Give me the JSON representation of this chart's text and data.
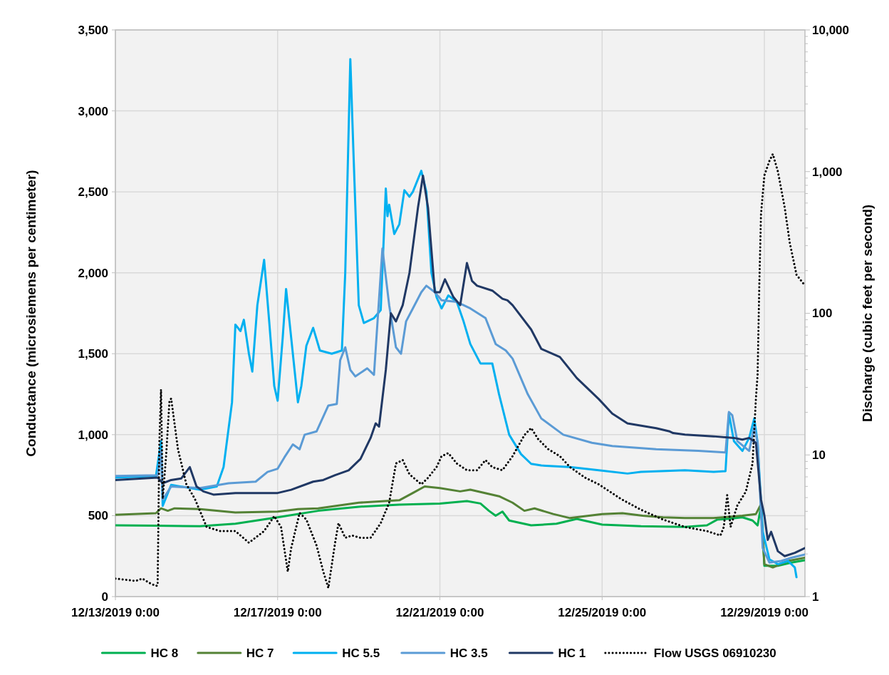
{
  "chart_data": {
    "type": "line",
    "ylabel": "Conductance (microsiemens per centimeter)",
    "y2label": "Discharge (cubic feet per second)",
    "xlim": [
      "2019-12-13T00:00",
      "2019-12-30T00:00"
    ],
    "xticks": [
      {
        "value": "2019-12-13T00:00",
        "label": "12/13/2019 0:00"
      },
      {
        "value": "2019-12-17T00:00",
        "label": "12/17/2019 0:00"
      },
      {
        "value": "2019-12-21T00:00",
        "label": "12/21/2019 0:00"
      },
      {
        "value": "2019-12-25T00:00",
        "label": "12/25/2019 0:00"
      },
      {
        "value": "2019-12-29T00:00",
        "label": "12/29/2019 0:00"
      }
    ],
    "ylim": [
      0,
      3500
    ],
    "yticks": [
      0,
      {
        "value": 500,
        "label": "500"
      },
      {
        "value": 1000,
        "label": "1,000"
      },
      {
        "value": 1500,
        "label": "1,500"
      },
      {
        "value": 2000,
        "label": "2,000"
      },
      {
        "value": 2500,
        "label": "2,500"
      },
      {
        "value": 3000,
        "label": "3,000"
      },
      {
        "value": 3500,
        "label": "3,500"
      }
    ],
    "y2lim": [
      1,
      10000
    ],
    "log": "y2",
    "y2ticks": [
      1,
      {
        "value": 2,
        "label": null
      },
      {
        "value": 3,
        "label": null
      },
      {
        "value": 4,
        "label": null
      },
      {
        "value": 5,
        "label": null
      },
      {
        "value": 6,
        "label": null
      },
      {
        "value": 7,
        "label": null
      },
      {
        "value": 8,
        "label": null
      },
      {
        "value": 9,
        "label": null
      },
      10,
      {
        "value": 20,
        "label": null
      },
      {
        "value": 30,
        "label": null
      },
      {
        "value": 40,
        "label": null
      },
      {
        "value": 50,
        "label": null
      },
      {
        "value": 60,
        "label": null
      },
      {
        "value": 70,
        "label": null
      },
      {
        "value": 80,
        "label": null
      },
      {
        "value": 90,
        "label": null
      },
      100,
      {
        "value": 200,
        "label": null
      },
      {
        "value": 300,
        "label": null
      },
      {
        "value": 400,
        "label": null
      },
      {
        "value": 500,
        "label": null
      },
      {
        "value": 600,
        "label": null
      },
      {
        "value": 700,
        "label": null
      },
      {
        "value": 800,
        "label": null
      },
      {
        "value": 900,
        "label": null
      },
      {
        "value": 1000,
        "label": "1,000"
      },
      {
        "value": 2000,
        "label": null
      },
      {
        "value": 3000,
        "label": null
      },
      {
        "value": 4000,
        "label": null
      },
      {
        "value": 5000,
        "label": null
      },
      {
        "value": 6000,
        "label": null
      },
      {
        "value": 7000,
        "label": null
      },
      {
        "value": 8000,
        "label": null
      },
      {
        "value": 9000,
        "label": null
      },
      {
        "value": 10000,
        "label": "10,000"
      }
    ],
    "grid": true,
    "legend": "bottom",
    "marker": "none",
    "line_style": "solid",
    "series": [
      {
        "name": "HC 8",
        "color": "#00b050",
        "x": [
          "2019-12-13T00:00",
          "2019-12-14T00:00",
          "2019-12-15T02:00",
          "2019-12-15T23:00",
          "2019-12-17T00:00",
          "2019-12-18T00:00",
          "2019-12-19T00:00",
          "2019-12-20T00:00",
          "2019-12-21T00:00",
          "2019-12-21T16:00",
          "2019-12-22T00:00",
          "2019-12-22T05:00",
          "2019-12-22T09:00",
          "2019-12-22T13:00",
          "2019-12-22T17:00",
          "2019-12-23T06:00",
          "2019-12-23T21:00",
          "2019-12-24T09:00",
          "2019-12-25T00:00",
          "2019-12-25T23:00",
          "2019-12-27T01:00",
          "2019-12-27T14:00",
          "2019-12-27T20:00",
          "2019-12-28T02:00",
          "2019-12-28T11:00",
          "2019-12-28T17:00",
          "2019-12-28T20:00",
          "2019-12-28T22:00",
          "2019-12-29T00:00",
          "2019-12-29T08:00",
          "2019-12-29T16:00",
          "2019-12-30T00:00"
        ],
        "values": [
          440,
          438,
          435,
          450,
          490,
          530,
          555,
          568,
          575,
          590,
          575,
          530,
          500,
          525,
          470,
          440,
          450,
          480,
          445,
          435,
          430,
          440,
          475,
          480,
          490,
          470,
          440,
          560,
          190,
          190,
          210,
          225
        ]
      },
      {
        "name": "HC 7",
        "color": "#548235",
        "x": [
          "2019-12-13T00:00",
          "2019-12-14T00:00",
          "2019-12-14T03:00",
          "2019-12-14T07:00",
          "2019-12-14T11:00",
          "2019-12-15T02:00",
          "2019-12-15T23:00",
          "2019-12-17T00:00",
          "2019-12-17T12:00",
          "2019-12-18T00:00",
          "2019-12-19T00:00",
          "2019-12-20T00:00",
          "2019-12-20T08:00",
          "2019-12-20T15:00",
          "2019-12-21T00:00",
          "2019-12-21T12:00",
          "2019-12-21T18:00",
          "2019-12-22T11:00",
          "2019-12-22T19:00",
          "2019-12-23T02:00",
          "2019-12-23T08:00",
          "2019-12-23T19:00",
          "2019-12-24T05:00",
          "2019-12-25T00:00",
          "2019-12-25T12:00",
          "2019-12-26T00:00",
          "2019-12-26T12:00",
          "2019-12-27T01:00",
          "2019-12-27T18:00",
          "2019-12-28T11:00",
          "2019-12-28T19:00",
          "2019-12-28T22:00",
          "2019-12-29T00:00",
          "2019-12-29T05:00",
          "2019-12-29T14:00",
          "2019-12-30T00:00"
        ],
        "values": [
          505,
          515,
          545,
          530,
          545,
          540,
          520,
          525,
          540,
          545,
          580,
          595,
          640,
          680,
          670,
          650,
          660,
          620,
          580,
          530,
          545,
          510,
          485,
          510,
          515,
          500,
          490,
          485,
          485,
          500,
          510,
          570,
          200,
          180,
          220,
          240
        ]
      },
      {
        "name": "HC 5.5",
        "color": "#00b0f0",
        "x": [
          "2019-12-13T00:00",
          "2019-12-14T00:00",
          "2019-12-14T03:00",
          "2019-12-14T04:00",
          "2019-12-14T09:00",
          "2019-12-15T02:00",
          "2019-12-15T12:00",
          "2019-12-15T16:00",
          "2019-12-15T21:00",
          "2019-12-15T23:00",
          "2019-12-16T02:00",
          "2019-12-16T04:00",
          "2019-12-16T07:00",
          "2019-12-16T09:00",
          "2019-12-16T12:00",
          "2019-12-16T16:00",
          "2019-12-16T19:00",
          "2019-12-16T22:00",
          "2019-12-17T00:00",
          "2019-12-17T03:00",
          "2019-12-17T05:00",
          "2019-12-17T08:00",
          "2019-12-17T12:00",
          "2019-12-17T14:00",
          "2019-12-17T17:00",
          "2019-12-17T21:00",
          "2019-12-18T01:00",
          "2019-12-18T08:00",
          "2019-12-18T14:00",
          "2019-12-18T16:00",
          "2019-12-18T19:00",
          "2019-12-18T21:00",
          "2019-12-19T00:00",
          "2019-12-19T03:00",
          "2019-12-19T09:00",
          "2019-12-19T13:00",
          "2019-12-19T16:00",
          "2019-12-19T17:00",
          "2019-12-19T18:00",
          "2019-12-19T21:00",
          "2019-12-20T00:00",
          "2019-12-20T03:00",
          "2019-12-20T06:00",
          "2019-12-20T08:00",
          "2019-12-20T13:00",
          "2019-12-20T16:00",
          "2019-12-20T19:00",
          "2019-12-20T22:00",
          "2019-12-21T01:00",
          "2019-12-21T05:00",
          "2019-12-21T10:00",
          "2019-12-21T14:00",
          "2019-12-21T18:00",
          "2019-12-22T00:00",
          "2019-12-22T07:00",
          "2019-12-22T11:00",
          "2019-12-22T17:00",
          "2019-12-23T00:00",
          "2019-12-23T06:00",
          "2019-12-23T12:00",
          "2019-12-24T05:00",
          "2019-12-24T22:00",
          "2019-12-25T15:00",
          "2019-12-25T23:00",
          "2019-12-27T01:00",
          "2019-12-27T18:00",
          "2019-12-28T01:00",
          "2019-12-28T03:00",
          "2019-12-28T06:00",
          "2019-12-28T11:00",
          "2019-12-28T15:00",
          "2019-12-28T18:00",
          "2019-12-28T20:00",
          "2019-12-28T23:00",
          "2019-12-29T03:00",
          "2019-12-29T08:00",
          "2019-12-29T14:00",
          "2019-12-29T18:00",
          "2019-12-29T19:00"
        ],
        "values": [
          735,
          745,
          960,
          560,
          690,
          660,
          680,
          800,
          1200,
          1680,
          1640,
          1710,
          1500,
          1390,
          1800,
          2080,
          1700,
          1300,
          1210,
          1600,
          1900,
          1600,
          1200,
          1300,
          1550,
          1660,
          1520,
          1500,
          1520,
          2000,
          3320,
          2700,
          1800,
          1690,
          1720,
          1770,
          2520,
          2350,
          2420,
          2240,
          2300,
          2510,
          2470,
          2500,
          2630,
          2500,
          2000,
          1850,
          1780,
          1860,
          1820,
          1700,
          1560,
          1440,
          1440,
          1250,
          1000,
          880,
          820,
          810,
          800,
          780,
          760,
          770,
          780,
          770,
          775,
          1130,
          960,
          900,
          980,
          1100,
          950,
          400,
          230,
          200,
          220,
          180,
          120
        ]
      },
      {
        "name": "HC 3.5",
        "color": "#5b9bd5",
        "x": [
          "2019-12-13T00:00",
          "2019-12-14T01:00",
          "2019-12-14T03:00",
          "2019-12-14T04:00",
          "2019-12-14T09:00",
          "2019-12-15T02:00",
          "2019-12-15T19:00",
          "2019-12-16T11:00",
          "2019-12-16T18:00",
          "2019-12-17T00:00",
          "2019-12-17T04:00",
          "2019-12-17T09:00",
          "2019-12-17T13:00",
          "2019-12-17T16:00",
          "2019-12-17T23:00",
          "2019-12-18T06:00",
          "2019-12-18T11:00",
          "2019-12-18T13:00",
          "2019-12-18T16:00",
          "2019-12-18T19:00",
          "2019-12-18T22:00",
          "2019-12-19T05:00",
          "2019-12-19T09:00",
          "2019-12-19T14:00",
          "2019-12-19T18:00",
          "2019-12-19T22:00",
          "2019-12-20T01:00",
          "2019-12-20T04:00",
          "2019-12-20T08:00",
          "2019-12-20T13:00",
          "2019-12-20T16:00",
          "2019-12-20T21:00",
          "2019-12-21T01:00",
          "2019-12-21T10:00",
          "2019-12-21T18:00",
          "2019-12-22T03:00",
          "2019-12-22T09:00",
          "2019-12-22T15:00",
          "2019-12-22T19:00",
          "2019-12-23T04:00",
          "2019-12-23T12:00",
          "2019-12-24T01:00",
          "2019-12-24T18:00",
          "2019-12-25T06:00",
          "2019-12-26T08:00",
          "2019-12-27T09:00",
          "2019-12-28T01:00",
          "2019-12-28T03:00",
          "2019-12-28T05:00",
          "2019-12-28T08:00",
          "2019-12-28T15:00",
          "2019-12-28T18:00",
          "2019-12-28T20:00",
          "2019-12-28T23:00",
          "2019-12-29T03:00",
          "2019-12-29T10:00",
          "2019-12-29T16:00",
          "2019-12-30T00:00"
        ],
        "values": [
          745,
          750,
          900,
          600,
          680,
          670,
          700,
          710,
          770,
          790,
          860,
          940,
          910,
          1000,
          1020,
          1180,
          1190,
          1460,
          1540,
          1400,
          1360,
          1410,
          1370,
          2150,
          1800,
          1540,
          1500,
          1700,
          1780,
          1880,
          1920,
          1880,
          1830,
          1820,
          1780,
          1720,
          1560,
          1520,
          1470,
          1250,
          1100,
          1000,
          950,
          930,
          910,
          900,
          890,
          1140,
          1120,
          960,
          900,
          1050,
          950,
          300,
          210,
          220,
          240,
          260
        ]
      },
      {
        "name": "HC 1",
        "color": "#203864",
        "x": [
          "2019-12-13T00:00",
          "2019-12-14T01:00",
          "2019-12-14T04:00",
          "2019-12-14T09:00",
          "2019-12-14T15:00",
          "2019-12-14T20:00",
          "2019-12-15T00:00",
          "2019-12-15T04:00",
          "2019-12-15T10:00",
          "2019-12-15T23:00",
          "2019-12-17T00:00",
          "2019-12-17T08:00",
          "2019-12-17T21:00",
          "2019-12-18T03:00",
          "2019-12-18T10:00",
          "2019-12-18T18:00",
          "2019-12-19T01:00",
          "2019-12-19T07:00",
          "2019-12-19T10:00",
          "2019-12-19T12:00",
          "2019-12-19T16:00",
          "2019-12-19T19:00",
          "2019-12-19T22:00",
          "2019-12-20T02:00",
          "2019-12-20T06:00",
          "2019-12-20T11:00",
          "2019-12-20T14:00",
          "2019-12-20T17:00",
          "2019-12-20T21:00",
          "2019-12-21T00:00",
          "2019-12-21T03:00",
          "2019-12-21T08:00",
          "2019-12-21T12:00",
          "2019-12-21T16:00",
          "2019-12-21T19:00",
          "2019-12-21T22:00",
          "2019-12-22T07:00",
          "2019-12-22T13:00",
          "2019-12-22T16:00",
          "2019-12-22T19:00",
          "2019-12-23T06:00",
          "2019-12-23T12:00",
          "2019-12-23T23:00",
          "2019-12-24T09:00",
          "2019-12-24T22:00",
          "2019-12-25T06:00",
          "2019-12-25T15:00",
          "2019-12-26T08:00",
          "2019-12-26T16:00",
          "2019-12-26T18:00",
          "2019-12-27T01:00",
          "2019-12-27T18:00",
          "2019-12-28T06:00",
          "2019-12-28T11:00",
          "2019-12-28T15:00",
          "2019-12-28T19:00",
          "2019-12-28T22:00",
          "2019-12-29T00:00",
          "2019-12-29T02:00",
          "2019-12-29T04:00",
          "2019-12-29T08:00",
          "2019-12-29T12:00",
          "2019-12-29T18:00",
          "2019-12-30T00:00"
        ],
        "values": [
          720,
          735,
          700,
          720,
          730,
          800,
          680,
          650,
          630,
          640,
          640,
          660,
          710,
          720,
          750,
          780,
          850,
          980,
          1070,
          1050,
          1400,
          1750,
          1700,
          1800,
          2000,
          2400,
          2600,
          2400,
          1880,
          1880,
          1960,
          1850,
          1800,
          2060,
          1950,
          1920,
          1890,
          1840,
          1830,
          1800,
          1650,
          1530,
          1480,
          1350,
          1220,
          1130,
          1070,
          1040,
          1020,
          1010,
          1000,
          990,
          980,
          970,
          980,
          950,
          600,
          500,
          350,
          400,
          280,
          250,
          270,
          300
        ]
      },
      {
        "name": "Flow USGS 06910230",
        "color": "#000000",
        "axis": "y2",
        "line_style": "dotted",
        "x": [
          "2019-12-13T00:00",
          "2019-12-13T12:00",
          "2019-12-13T16:00",
          "2019-12-13T20:00",
          "2019-12-14T00:00",
          "2019-12-14T01:00",
          "2019-12-14T02:00",
          "2019-12-14T03:00",
          "2019-12-14T04:00",
          "2019-12-14T06:00",
          "2019-12-14T08:00",
          "2019-12-14T09:00",
          "2019-12-14T13:00",
          "2019-12-14T18:00",
          "2019-12-14T23:00",
          "2019-12-15T06:00",
          "2019-12-15T14:00",
          "2019-12-15T23:00",
          "2019-12-16T07:00",
          "2019-12-16T16:00",
          "2019-12-16T22:00",
          "2019-12-17T02:00",
          "2019-12-17T06:00",
          "2019-12-17T08:00",
          "2019-12-17T13:00",
          "2019-12-17T17:00",
          "2019-12-17T23:00",
          "2019-12-18T03:00",
          "2019-12-18T06:00",
          "2019-12-18T10:00",
          "2019-12-18T12:00",
          "2019-12-18T16:00",
          "2019-12-18T20:00",
          "2019-12-19T01:00",
          "2019-12-19T07:00",
          "2019-12-19T13:00",
          "2019-12-19T18:00",
          "2019-12-19T22:00",
          "2019-12-20T02:00",
          "2019-12-20T06:00",
          "2019-12-20T13:00",
          "2019-12-20T17:00",
          "2019-12-20T22:00",
          "2019-12-21T01:00",
          "2019-12-21T05:00",
          "2019-12-21T10:00",
          "2019-12-21T16:00",
          "2019-12-21T22:00",
          "2019-12-22T03:00",
          "2019-12-22T07:00",
          "2019-12-22T13:00",
          "2019-12-22T19:00",
          "2019-12-23T02:00",
          "2019-12-23T06:00",
          "2019-12-23T10:00",
          "2019-12-23T16:00",
          "2019-12-23T23:00",
          "2019-12-24T05:00",
          "2019-12-24T14:00",
          "2019-12-24T22:00",
          "2019-12-25T11:00",
          "2019-12-25T23:00",
          "2019-12-26T12:00",
          "2019-12-27T01:00",
          "2019-12-27T14:00",
          "2019-12-27T22:00",
          "2019-12-28T00:00",
          "2019-12-28T02:00",
          "2019-12-28T04:00",
          "2019-12-28T08:00",
          "2019-12-28T13:00",
          "2019-12-28T17:00",
          "2019-12-28T19:00",
          "2019-12-28T20:00",
          "2019-12-28T21:00",
          "2019-12-28T22:00",
          "2019-12-29T00:00",
          "2019-12-29T03:00",
          "2019-12-29T05:00",
          "2019-12-29T08:00",
          "2019-12-29T12:00",
          "2019-12-29T15:00",
          "2019-12-29T19:00",
          "2019-12-30T00:00"
        ],
        "values": [
          1.34,
          1.29,
          1.34,
          1.25,
          1.19,
          1.2,
          12,
          29,
          4.9,
          9.8,
          24,
          25,
          11,
          6.2,
          4.9,
          3.1,
          2.9,
          2.9,
          2.4,
          2.9,
          3.7,
          3.1,
          1.5,
          2.2,
          3.9,
          3.5,
          2.3,
          1.5,
          1.15,
          2.4,
          3.3,
          2.6,
          2.7,
          2.6,
          2.6,
          3.3,
          4.6,
          8.7,
          9.2,
          7.3,
          6.2,
          6.9,
          8.2,
          9.8,
          10.3,
          8.7,
          7.8,
          7.8,
          9.2,
          8.2,
          7.8,
          9.8,
          13.8,
          15.5,
          13,
          11,
          9.8,
          8.2,
          6.9,
          6.2,
          4.9,
          4.1,
          3.5,
          3.1,
          2.9,
          2.7,
          3.1,
          5.2,
          3.1,
          4.4,
          5.5,
          8.7,
          25,
          37,
          157,
          500,
          940,
          1190,
          1330,
          1000,
          560,
          315,
          187,
          157
        ]
      }
    ]
  }
}
